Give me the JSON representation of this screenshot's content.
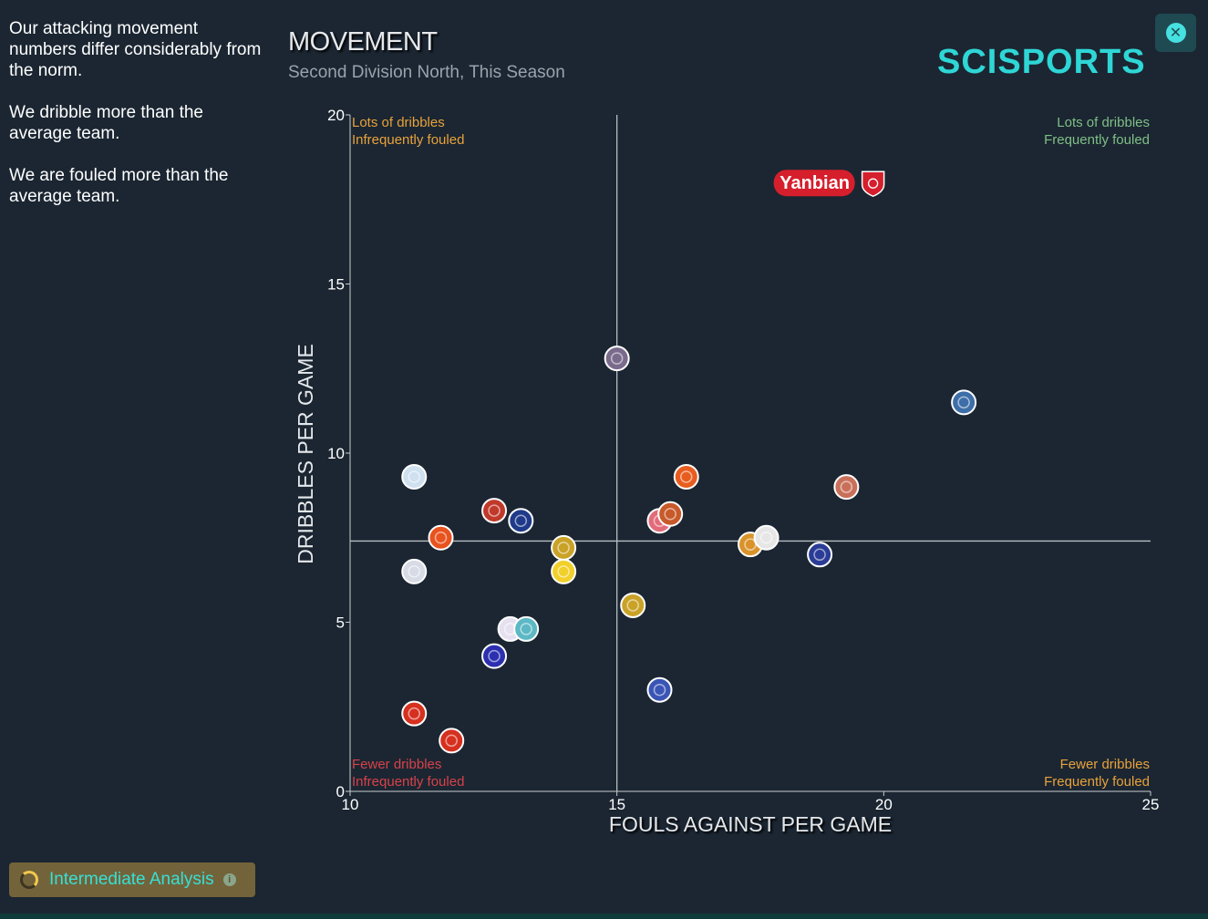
{
  "summary": {
    "line1": "Our attacking movement numbers differ considerably from the norm.",
    "line2": "We dribble more than the average team.",
    "line3": "We are fouled more than the average team."
  },
  "header": {
    "title": "MOVEMENT",
    "subtitle": "Second Division North, This Season",
    "brand": "SCISPORTS"
  },
  "footer": {
    "badge_label": "Intermediate Analysis"
  },
  "colors": {
    "background": "#1b2632",
    "brand": "#2fd6d6",
    "top_left_quadrant": "#e8a23b",
    "top_right_quadrant": "#7fbf86",
    "bottom_left_quadrant": "#d8424a",
    "bottom_right_quadrant": "#e8a23b",
    "highlight": "#d61f2c"
  },
  "chart_data": {
    "type": "scatter",
    "xlabel": "FOULS AGAINST PER GAME",
    "ylabel": "DRIBBLES PER GAME",
    "xlim": [
      10,
      25
    ],
    "ylim": [
      0,
      20
    ],
    "x_ticks": [
      10,
      15,
      20,
      25
    ],
    "y_ticks": [
      0,
      5,
      10,
      15,
      20
    ],
    "grid": false,
    "average_lines": {
      "x": 15,
      "y": 7.4
    },
    "quadrant_labels": {
      "top_left": [
        "Lots of dribbles",
        "Infrequently fouled"
      ],
      "top_right": [
        "Lots of dribbles",
        "Frequently fouled"
      ],
      "bottom_left": [
        "Fewer dribbles",
        "Infrequently fouled"
      ],
      "bottom_right": [
        "Fewer dribbles",
        "Frequently fouled"
      ]
    },
    "highlight": {
      "label": "Yanbian",
      "x": 19.8,
      "y": 18.0,
      "color": "#d61f2c"
    },
    "points": [
      {
        "x": 11.2,
        "y": 9.3,
        "color": "#cfe0ef"
      },
      {
        "x": 11.7,
        "y": 7.5,
        "color": "#e8531f"
      },
      {
        "x": 11.2,
        "y": 6.5,
        "color": "#d7dbe6"
      },
      {
        "x": 12.7,
        "y": 8.3,
        "color": "#c0392b"
      },
      {
        "x": 13.2,
        "y": 8.0,
        "color": "#1f3a8a"
      },
      {
        "x": 14.0,
        "y": 7.2,
        "color": "#c9a227"
      },
      {
        "x": 14.0,
        "y": 6.5,
        "color": "#f1d02a"
      },
      {
        "x": 15.0,
        "y": 12.8,
        "color": "#7a6a8c"
      },
      {
        "x": 16.3,
        "y": 9.3,
        "color": "#e85d1f"
      },
      {
        "x": 15.8,
        "y": 8.0,
        "color": "#e26b7a"
      },
      {
        "x": 16.0,
        "y": 8.2,
        "color": "#c85a2a"
      },
      {
        "x": 15.3,
        "y": 5.5,
        "color": "#c9a227"
      },
      {
        "x": 13.0,
        "y": 4.8,
        "color": "#e6e1f0"
      },
      {
        "x": 13.3,
        "y": 4.8,
        "color": "#5cb8c4"
      },
      {
        "x": 12.7,
        "y": 4.0,
        "color": "#2b2fb0"
      },
      {
        "x": 15.8,
        "y": 3.0,
        "color": "#3a55b5"
      },
      {
        "x": 11.2,
        "y": 2.3,
        "color": "#d6301f"
      },
      {
        "x": 11.9,
        "y": 1.5,
        "color": "#d6301f"
      },
      {
        "x": 17.5,
        "y": 7.3,
        "color": "#d9932a"
      },
      {
        "x": 17.8,
        "y": 7.5,
        "color": "#e6e6e6"
      },
      {
        "x": 18.8,
        "y": 7.0,
        "color": "#2a3c96"
      },
      {
        "x": 19.3,
        "y": 9.0,
        "color": "#c9705a"
      },
      {
        "x": 21.5,
        "y": 11.5,
        "color": "#3d6ea8"
      }
    ]
  }
}
